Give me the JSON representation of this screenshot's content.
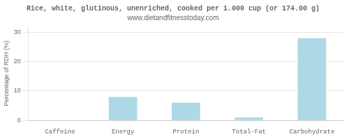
{
  "chart_data": {
    "type": "bar",
    "title": "Rice, white, glutinous, unenriched, cooked per 1.000 cup (or 174.00 g)",
    "subtitle": "www.dietandfitnesstoday.com",
    "categories": [
      "Caffeine",
      "Energy",
      "Protein",
      "Total-Fat",
      "Carbohydrate"
    ],
    "values": [
      0,
      8,
      6,
      1,
      28
    ],
    "color": "#add8e6",
    "ylabel": "Percentage of RDH (%)",
    "ylim": [
      0,
      32
    ],
    "yticks": [
      0,
      10,
      20,
      30
    ],
    "grid": true
  }
}
